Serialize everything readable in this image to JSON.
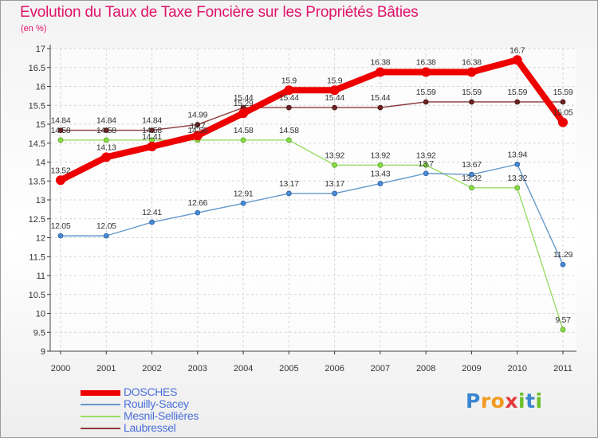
{
  "title": "Evolution du Taux de Taxe Foncière sur les Propriétés Bâties",
  "unit_label": "(en %)",
  "logo": {
    "letters": [
      "P",
      "r",
      "o",
      "x",
      "i",
      "t",
      "i"
    ],
    "colors": [
      "#3a86d0",
      "#f39a1e",
      "#f39a1e",
      "#e23b3b",
      "#6cbf2a",
      "#3a86d0",
      "#6cbf2a"
    ]
  },
  "chart_data": {
    "type": "line",
    "x": [
      "2000",
      "2001",
      "2002",
      "2003",
      "2004",
      "2005",
      "2006",
      "2007",
      "2008",
      "2009",
      "2010",
      "2011"
    ],
    "ylim": [
      9,
      17
    ],
    "yticks": [
      "9",
      "9.5",
      "10",
      "10.5",
      "11",
      "11.5",
      "12",
      "12.5",
      "13",
      "13.5",
      "14",
      "14.5",
      "15",
      "15.5",
      "16",
      "16.5",
      "17"
    ],
    "grid": true,
    "legend_position": "bottom-left",
    "series": [
      {
        "name": "DOSCHES",
        "color": "#ee0000",
        "values": [
          13.52,
          14.13,
          14.41,
          14.7,
          15.29,
          15.9,
          15.9,
          16.38,
          16.38,
          16.38,
          16.7,
          15.05
        ],
        "labels": [
          "13.52",
          "14.13",
          "14.41",
          "14.7",
          "15.29",
          "15.9",
          "15.9",
          "16.38",
          "16.38",
          "16.38",
          "16.7",
          "15.05"
        ]
      },
      {
        "name": "Rouilly-Sacey",
        "color": "#6699cc",
        "values": [
          12.05,
          12.05,
          12.41,
          12.66,
          12.91,
          13.17,
          13.17,
          13.43,
          13.7,
          13.67,
          13.94,
          11.29
        ],
        "labels": [
          "12.05",
          "12.05",
          "12.41",
          "12.66",
          "12.91",
          "13.17",
          "13.17",
          "13.43",
          "13.7",
          "13.67",
          "13.94",
          "11.29"
        ]
      },
      {
        "name": "Mesnil-Sellières",
        "color": "#99dd66",
        "values": [
          14.58,
          14.58,
          14.58,
          14.58,
          14.58,
          14.58,
          13.92,
          13.92,
          13.92,
          13.32,
          13.32,
          9.57
        ],
        "labels": [
          "14.58",
          "14.58",
          "14.58",
          "14.58",
          "14.58",
          "14.58",
          "13.92",
          "13.92",
          "13.92",
          "13.32",
          "13.32",
          "9.57"
        ]
      },
      {
        "name": "Laubressel",
        "color": "#8b3a3a",
        "values": [
          14.84,
          14.84,
          14.84,
          14.99,
          15.44,
          15.44,
          15.44,
          15.44,
          15.59,
          15.59,
          15.59,
          15.59
        ],
        "labels": [
          "14.84",
          "14.84",
          "14.84",
          "14.99",
          "15.44",
          "15.44",
          "15.44",
          "15.44",
          "15.59",
          "15.59",
          "15.59",
          "15.59"
        ]
      }
    ]
  }
}
